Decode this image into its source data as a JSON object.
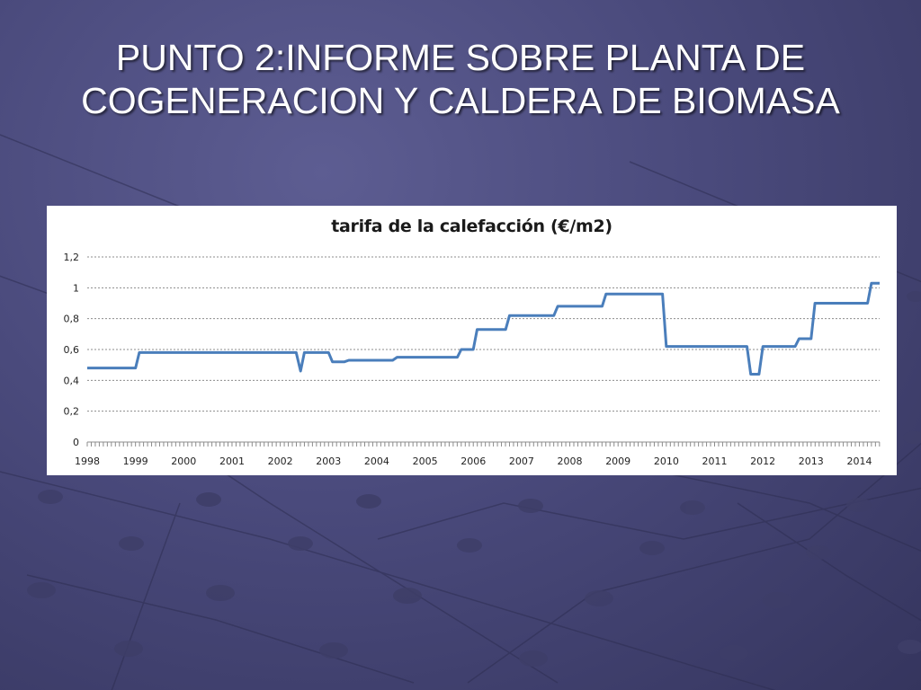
{
  "slide": {
    "title_line1": "PUNTO 2:INFORME SOBRE PLANTA DE",
    "title_line2": "COGENERACION Y CALDERA DE BIOMASA"
  },
  "chart_data": {
    "type": "line",
    "title": "tarifa de la calefacción  (€/m2)",
    "xlabel": "",
    "ylabel": "",
    "ylim": [
      0,
      1.2
    ],
    "yticks": [
      "0",
      "0,2",
      "0,4",
      "0,6",
      "0,8",
      "1",
      "1,2"
    ],
    "xticks": [
      "1998",
      "1999",
      "2000",
      "2001",
      "2002",
      "2003",
      "2004",
      "2005",
      "2006",
      "2007",
      "2008",
      "2009",
      "2010",
      "2011",
      "2012",
      "2013",
      "2014"
    ],
    "xlim": [
      1998,
      2014.42
    ],
    "grid": true,
    "line_color": "#4a7ebb",
    "series": [
      {
        "name": "",
        "x": [
          1998.0,
          1999.0,
          1999.08,
          2002.33,
          2002.42,
          2002.5,
          2003.0,
          2003.08,
          2003.33,
          2003.42,
          2004.33,
          2004.42,
          2005.67,
          2005.75,
          2006.0,
          2006.08,
          2006.67,
          2006.75,
          2007.67,
          2007.75,
          2008.67,
          2008.75,
          2009.92,
          2010.0,
          2011.67,
          2011.75,
          2011.92,
          2012.0,
          2012.67,
          2012.75,
          2013.0,
          2013.08,
          2014.17,
          2014.25,
          2014.42
        ],
        "y": [
          0.48,
          0.48,
          0.58,
          0.58,
          0.46,
          0.58,
          0.58,
          0.52,
          0.52,
          0.53,
          0.53,
          0.55,
          0.55,
          0.6,
          0.6,
          0.73,
          0.73,
          0.82,
          0.82,
          0.88,
          0.88,
          0.96,
          0.96,
          0.62,
          0.62,
          0.44,
          0.44,
          0.62,
          0.62,
          0.67,
          0.67,
          0.9,
          0.9,
          1.03,
          1.03
        ]
      }
    ]
  }
}
